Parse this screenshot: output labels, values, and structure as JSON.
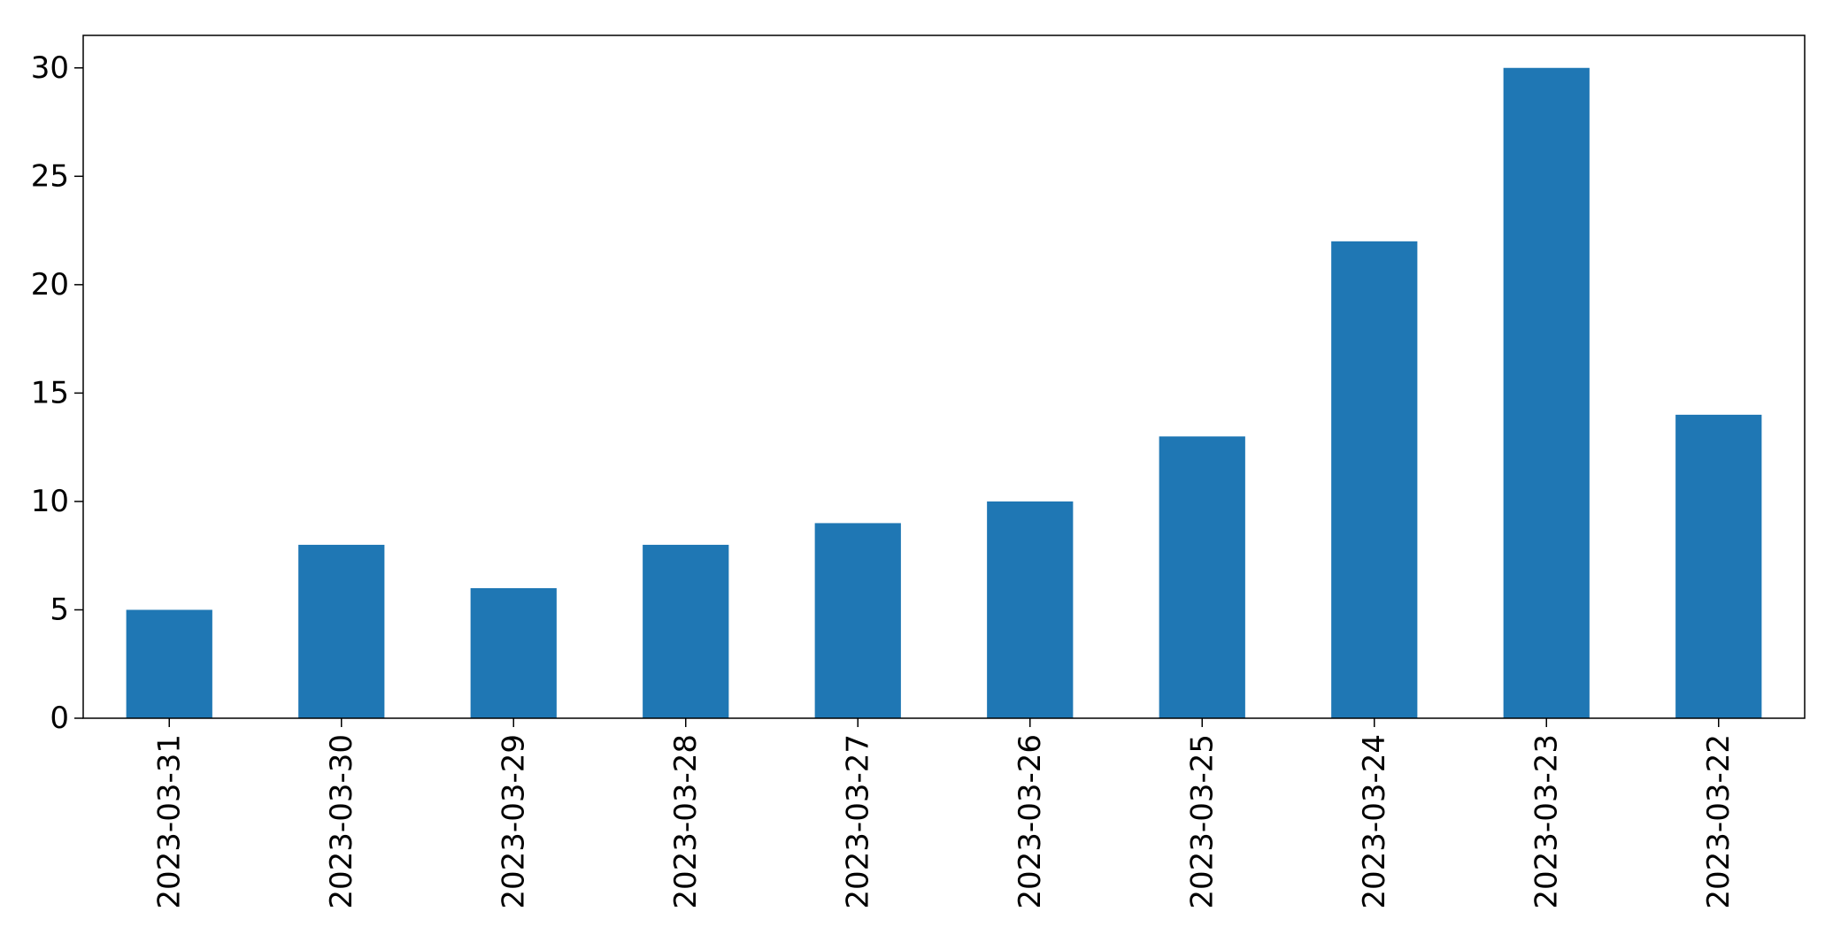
{
  "chart_data": {
    "type": "bar",
    "categories": [
      "2023-03-31",
      "2023-03-30",
      "2023-03-29",
      "2023-03-28",
      "2023-03-27",
      "2023-03-26",
      "2023-03-25",
      "2023-03-24",
      "2023-03-23",
      "2023-03-22"
    ],
    "values": [
      5,
      8,
      6,
      8,
      9,
      10,
      13,
      22,
      30,
      14
    ],
    "title": "",
    "xlabel": "",
    "ylabel": "",
    "ylim": [
      0,
      31.5
    ],
    "yticks": [
      0,
      5,
      10,
      15,
      20,
      25,
      30
    ],
    "grid": false,
    "legend": "none",
    "bar_color": "#1f77b4",
    "x_tick_rotation": "vertical"
  }
}
